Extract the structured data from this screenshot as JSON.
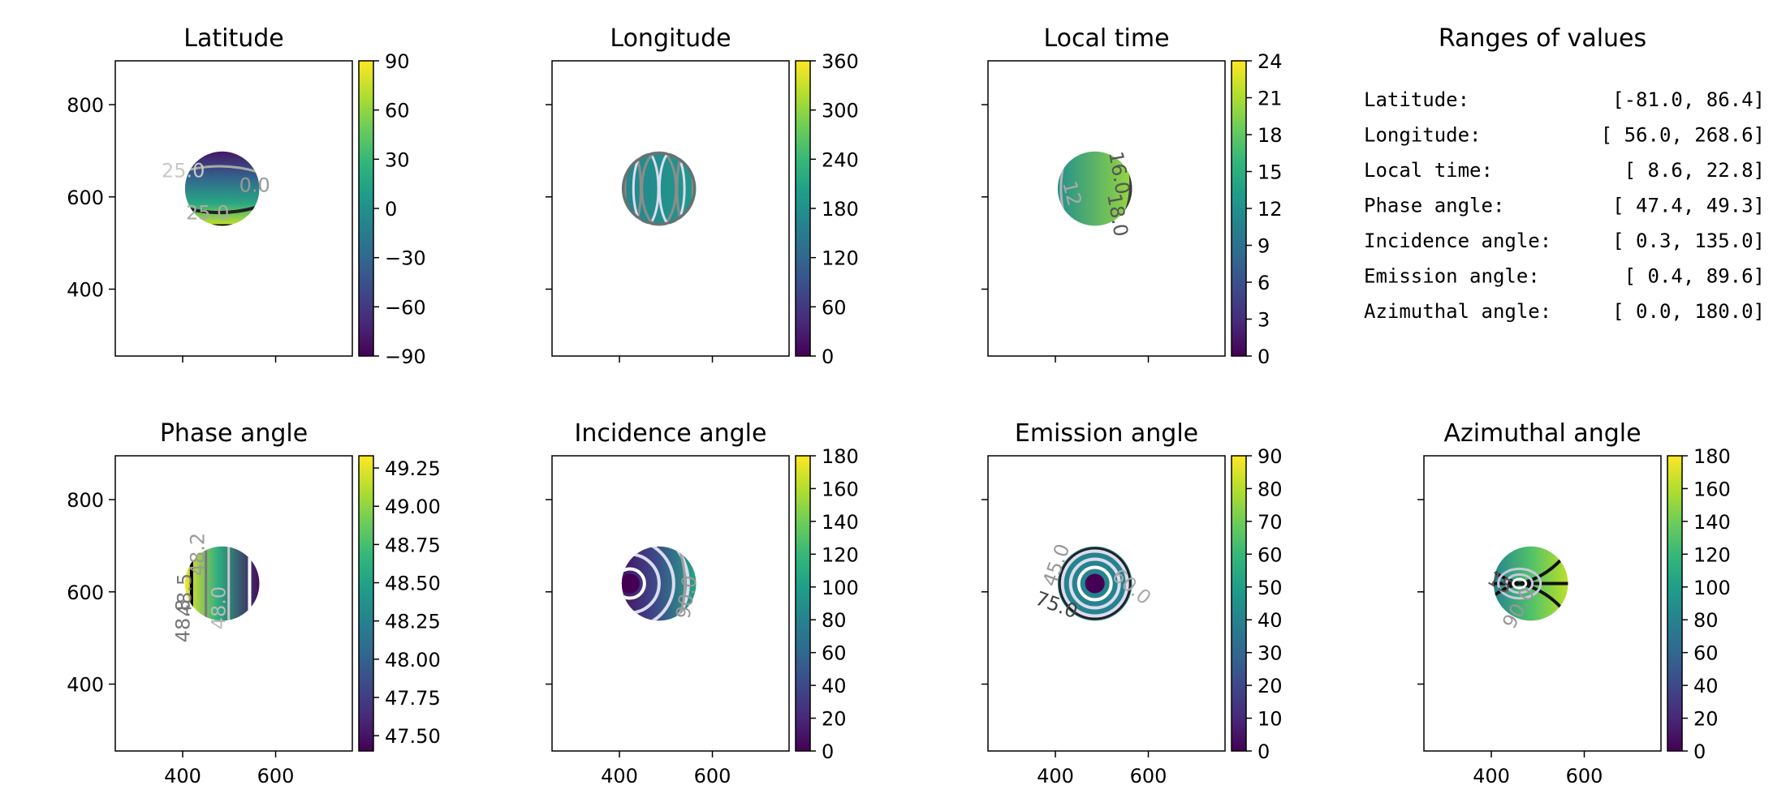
{
  "figure": {
    "x_ticks": [
      400,
      600
    ],
    "y_ticks": [
      400,
      600,
      800
    ],
    "x_range": [
      255,
      765
    ],
    "y_range": [
      255,
      895
    ]
  },
  "chart_data": [
    {
      "type": "heatmap",
      "title": "Latitude",
      "colormap": "viridis",
      "vmin": -90,
      "vmax": 90,
      "colorbar_ticks": [
        "90",
        "60",
        "30",
        "0",
        "−30",
        "−60",
        "−90"
      ],
      "contour_labels": [
        "25.0",
        "0.0",
        "25.0"
      ],
      "show_xtick_labels": false,
      "show_ytick_labels": true,
      "disk": {
        "cx": 485,
        "cy": 618,
        "r": 80
      }
    },
    {
      "type": "heatmap",
      "title": "Longitude",
      "colormap": "viridis",
      "vmin": 0,
      "vmax": 360,
      "colorbar_ticks": [
        "360",
        "300",
        "240",
        "180",
        "120",
        "60",
        "0"
      ],
      "contour_labels": [],
      "show_xtick_labels": false,
      "show_ytick_labels": false,
      "disk": {
        "cx": 485,
        "cy": 618,
        "r": 80
      }
    },
    {
      "type": "heatmap",
      "title": "Local time",
      "colormap": "viridis",
      "vmin": 0,
      "vmax": 24,
      "colorbar_ticks": [
        "24",
        "21",
        "18",
        "15",
        "12",
        "9",
        "6",
        "3",
        "0"
      ],
      "contour_labels": [
        "12",
        "16.0",
        "18.0"
      ],
      "show_xtick_labels": false,
      "show_ytick_labels": false,
      "disk": {
        "cx": 485,
        "cy": 618,
        "r": 80
      }
    },
    {
      "type": "table",
      "title": "Ranges of values",
      "rows": [
        {
          "label": "Latitude:",
          "range": "[-81.0,  86.4]"
        },
        {
          "label": "Longitude:",
          "range": "[ 56.0, 268.6]"
        },
        {
          "label": "Local time:",
          "range": "[  8.6,  22.8]"
        },
        {
          "label": "Phase angle:",
          "range": "[ 47.4,  49.3]"
        },
        {
          "label": "Incidence angle:",
          "range": "[  0.3, 135.0]"
        },
        {
          "label": "Emission angle:",
          "range": "[  0.4,  89.6]"
        },
        {
          "label": "Azimuthal angle:",
          "range": "[  0.0, 180.0]"
        }
      ]
    },
    {
      "type": "heatmap",
      "title": "Phase angle",
      "colormap": "viridis",
      "vmin": 47.4,
      "vmax": 49.33,
      "colorbar_ticks": [
        "49.25",
        "49.00",
        "48.75",
        "48.50",
        "48.25",
        "48.00",
        "47.75",
        "47.50"
      ],
      "colorbar_tick_values": [
        49.25,
        49.0,
        48.75,
        48.5,
        48.25,
        48.0,
        47.75,
        47.5
      ],
      "contour_labels": [
        "48.5",
        "48.2",
        "48.0",
        "48.8"
      ],
      "show_xtick_labels": true,
      "show_ytick_labels": true,
      "disk": {
        "cx": 485,
        "cy": 618,
        "r": 80
      }
    },
    {
      "type": "heatmap",
      "title": "Incidence angle",
      "colormap": "viridis",
      "vmin": 0,
      "vmax": 180,
      "colorbar_ticks": [
        "180",
        "160",
        "140",
        "120",
        "100",
        "80",
        "60",
        "40",
        "20",
        "0"
      ],
      "contour_labels": [
        "90.0"
      ],
      "show_xtick_labels": true,
      "show_ytick_labels": false,
      "disk": {
        "cx": 485,
        "cy": 618,
        "r": 80
      }
    },
    {
      "type": "heatmap",
      "title": "Emission angle",
      "colormap": "viridis",
      "vmin": 0,
      "vmax": 90,
      "colorbar_ticks": [
        "90",
        "80",
        "70",
        "60",
        "50",
        "40",
        "30",
        "20",
        "10",
        "0"
      ],
      "contour_labels": [
        "45.0",
        "75.0",
        "60.0"
      ],
      "show_xtick_labels": true,
      "show_ytick_labels": false,
      "disk": {
        "cx": 485,
        "cy": 618,
        "r": 80
      }
    },
    {
      "type": "heatmap",
      "title": "Azimuthal angle",
      "colormap": "viridis",
      "vmin": 0,
      "vmax": 180,
      "colorbar_ticks": [
        "180",
        "160",
        "140",
        "120",
        "100",
        "80",
        "60",
        "40",
        "20",
        "0"
      ],
      "contour_labels": [
        "15",
        "90.0"
      ],
      "show_xtick_labels": true,
      "show_ytick_labels": false,
      "disk": {
        "cx": 485,
        "cy": 618,
        "r": 80
      }
    }
  ]
}
